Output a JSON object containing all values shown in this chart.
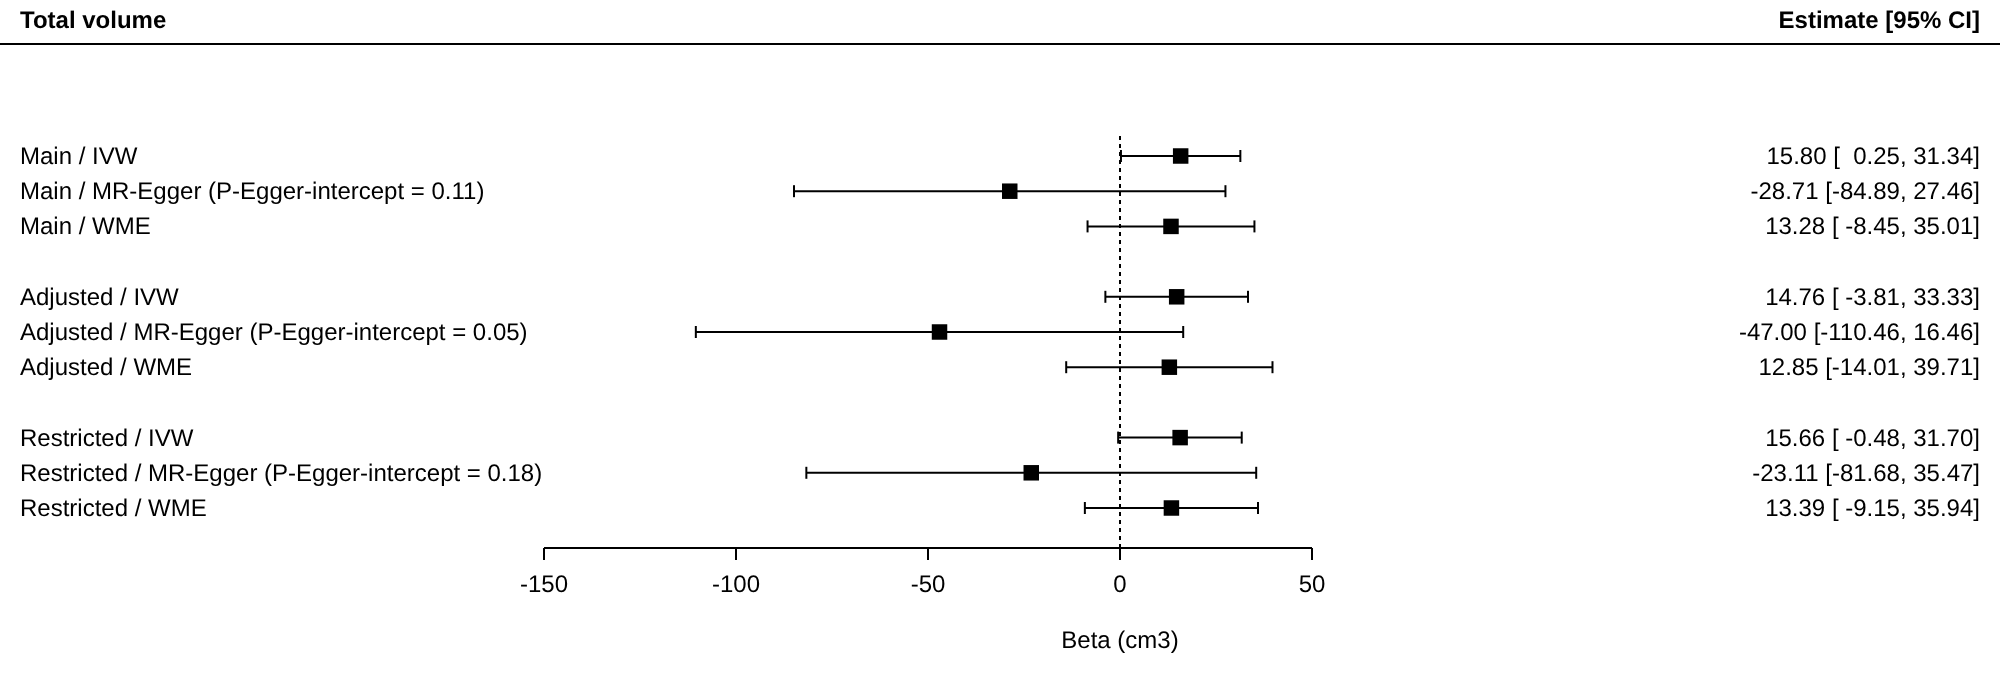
{
  "chart_data": {
    "type": "scatter",
    "orientation": "horizontal",
    "title": "Total volume",
    "xlabel": "Beta (cm3)",
    "annotations": [
      "Estimate [95% CI]"
    ],
    "categories": [
      "Main / IVW",
      "Main / MR-Egger  (P-Egger-intercept = 0.11)",
      "Main / WME",
      null,
      "Adjusted / IVW",
      "Adjusted / MR-Egger (P-Egger-intercept = 0.05)",
      "Adjusted / WME",
      null,
      "Restricted / IVW",
      "Restricted / MR-Egger (P-Egger-intercept = 0.18)",
      "Restricted / WME"
    ],
    "values": [
      15.8,
      -28.71,
      13.28,
      null,
      14.76,
      -47.0,
      12.85,
      null,
      15.66,
      -23.11,
      13.39
    ],
    "errors": [
      [
        0.25,
        31.34
      ],
      [
        -84.89,
        27.46
      ],
      [
        -8.45,
        35.01
      ],
      null,
      [
        -3.81,
        33.33
      ],
      [
        -110.46,
        16.46
      ],
      [
        -14.01,
        39.71
      ],
      null,
      [
        -0.48,
        31.7
      ],
      [
        -81.68,
        35.47
      ],
      [
        -9.15,
        35.94
      ]
    ],
    "value_labels": [
      "15.80 [  0.25, 31.34]",
      "-28.71 [-84.89, 27.46]",
      "13.28 [ -8.45, 35.01]",
      null,
      "14.76 [ -3.81, 33.33]",
      "-47.00 [-110.46, 16.46]",
      "12.85 [-14.01, 39.71]",
      null,
      "15.66 [ -0.48, 31.70]",
      "-23.11 [-81.68, 35.47]",
      "13.39 [ -9.15, 35.94]"
    ],
    "color": "#000000",
    "marker": "square",
    "xlim": [
      -150,
      50
    ],
    "xticks": [
      -150,
      -100,
      -50,
      0,
      50
    ],
    "ref_lines": [
      {
        "axis": "x",
        "value": 0,
        "line_style": "dotted"
      }
    ],
    "grid": false
  }
}
